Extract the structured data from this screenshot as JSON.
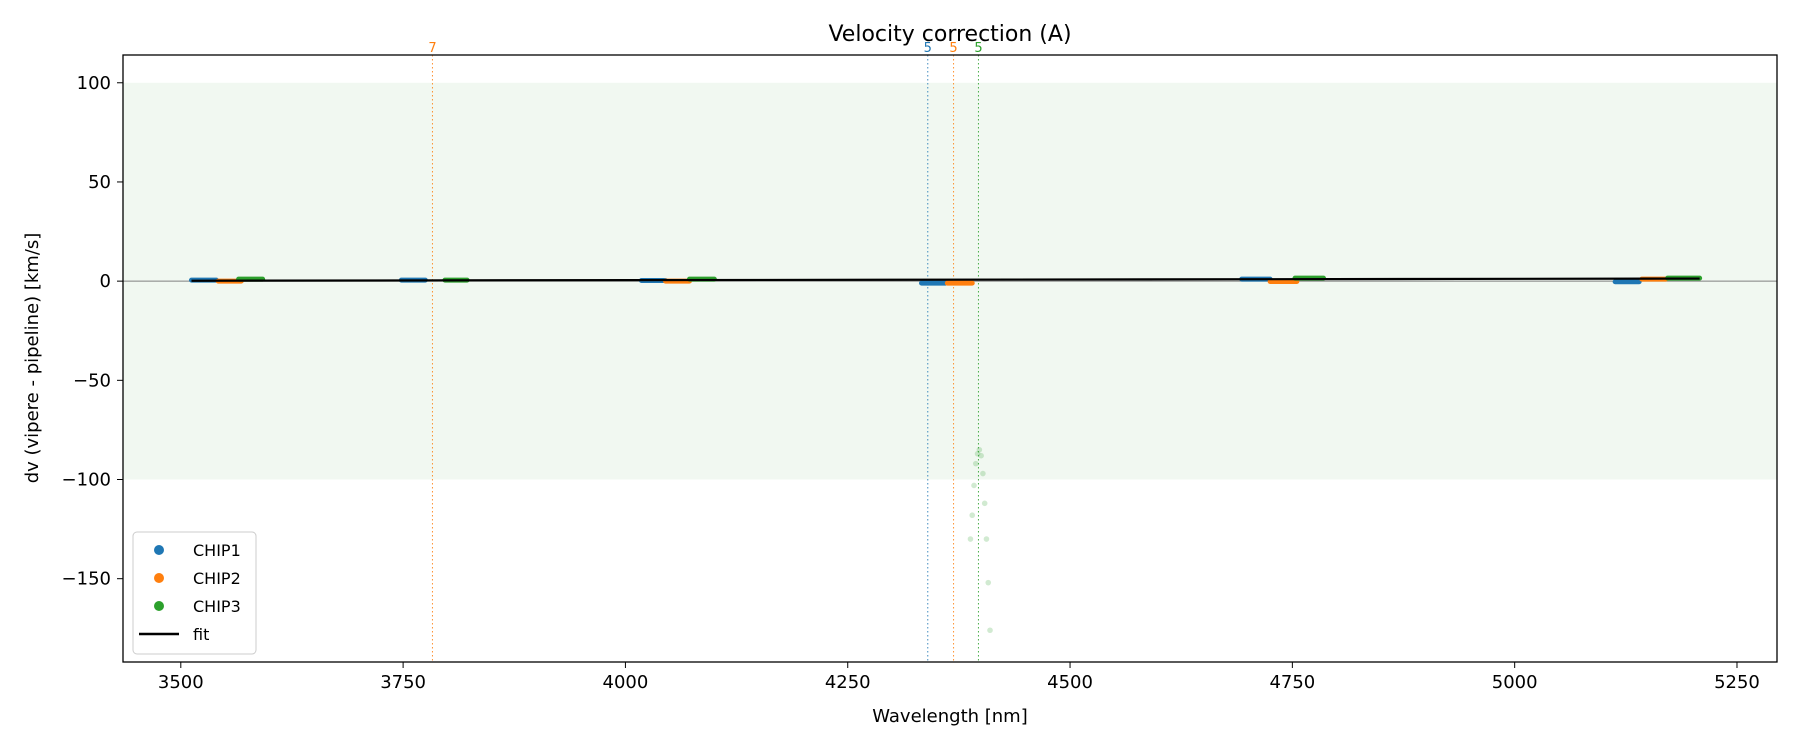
{
  "chart_data": {
    "type": "scatter",
    "title": "Velocity correction (A)",
    "xlabel": "Wavelength [nm]",
    "ylabel": "dv (vipere - pipeline) [km/s]",
    "xlim": [
      3435,
      5295
    ],
    "ylim": [
      -192,
      114
    ],
    "xticks": [
      3500,
      3750,
      4000,
      4250,
      4500,
      4750,
      5000,
      5250
    ],
    "yticks": [
      100,
      50,
      0,
      -50,
      -100,
      -150
    ],
    "band": {
      "ymin": -100,
      "ymax": 100,
      "color": "#e8f4e8"
    },
    "zero_line": 0,
    "series": [
      {
        "name": "CHIP1",
        "color": "#1f77b4",
        "segments": [
          {
            "x0": 3512,
            "x1": 3540,
            "y": 0.5
          },
          {
            "x0": 3748,
            "x1": 3775,
            "y": 0.5
          },
          {
            "x0": 4018,
            "x1": 4045,
            "y": 0.3
          },
          {
            "x0": 4333,
            "x1": 4360,
            "y": -1.0
          },
          {
            "x0": 4693,
            "x1": 4725,
            "y": 1.0
          },
          {
            "x0": 5113,
            "x1": 5140,
            "y": -0.3
          }
        ]
      },
      {
        "name": "CHIP2",
        "color": "#ff7f0e",
        "segments": [
          {
            "x0": 3542,
            "x1": 3568,
            "y": 0.0
          },
          {
            "x0": 4045,
            "x1": 4072,
            "y": 0.0
          },
          {
            "x0": 4362,
            "x1": 4390,
            "y": -1.0
          },
          {
            "x0": 4725,
            "x1": 4755,
            "y": -0.2
          },
          {
            "x0": 5143,
            "x1": 5170,
            "y": 1.0
          }
        ]
      },
      {
        "name": "CHIP3",
        "color": "#2ca02c",
        "segments": [
          {
            "x0": 3565,
            "x1": 3592,
            "y": 1.0
          },
          {
            "x0": 3797,
            "x1": 3822,
            "y": 0.5
          },
          {
            "x0": 4072,
            "x1": 4100,
            "y": 1.0
          },
          {
            "x0": 4753,
            "x1": 4785,
            "y": 1.5
          },
          {
            "x0": 5172,
            "x1": 5208,
            "y": 1.5
          }
        ],
        "outlier_x": [
          4388,
          4390,
          4392,
          4394,
          4396,
          4398,
          4400,
          4402,
          4404,
          4406,
          4408,
          4410
        ],
        "outlier_y": [
          -130,
          -118,
          -103,
          -92,
          -87,
          -85,
          -88,
          -97,
          -112,
          -130,
          -152,
          -176
        ]
      }
    ],
    "fit": {
      "name": "fit",
      "color": "#000000",
      "x": [
        3512,
        5208
      ],
      "y": [
        0.2,
        1.3
      ]
    },
    "vlines": [
      {
        "x": 3783,
        "label": "7",
        "color": "#ff7f0e"
      },
      {
        "x": 4340,
        "label": "5",
        "color": "#1f77b4"
      },
      {
        "x": 4369,
        "label": "5",
        "color": "#ff7f0e"
      },
      {
        "x": 4397,
        "label": "5",
        "color": "#2ca02c"
      }
    ],
    "legend": {
      "position": "lower-left",
      "items": [
        {
          "label": "CHIP1",
          "color": "#1f77b4",
          "kind": "marker"
        },
        {
          "label": "CHIP2",
          "color": "#ff7f0e",
          "kind": "marker"
        },
        {
          "label": "CHIP3",
          "color": "#2ca02c",
          "kind": "marker"
        },
        {
          "label": "fit",
          "color": "#000000",
          "kind": "line"
        }
      ]
    }
  }
}
